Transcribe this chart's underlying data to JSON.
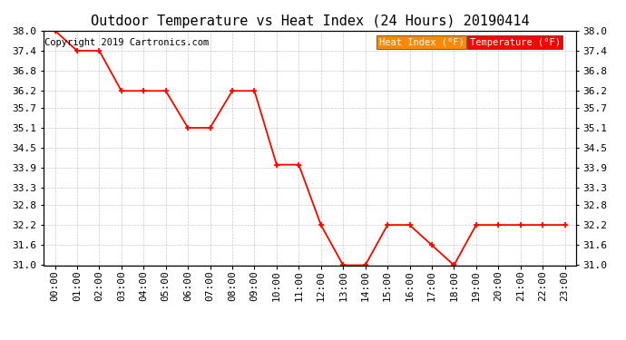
{
  "title": "Outdoor Temperature vs Heat Index (24 Hours) 20190414",
  "copyright": "Copyright 2019 Cartronics.com",
  "x_labels": [
    "00:00",
    "01:00",
    "02:00",
    "03:00",
    "04:00",
    "05:00",
    "06:00",
    "07:00",
    "08:00",
    "09:00",
    "10:00",
    "11:00",
    "12:00",
    "13:00",
    "14:00",
    "15:00",
    "16:00",
    "17:00",
    "18:00",
    "19:00",
    "20:00",
    "21:00",
    "22:00",
    "23:00"
  ],
  "ylim": [
    31.0,
    38.0
  ],
  "yticks": [
    31.0,
    31.6,
    32.2,
    32.8,
    33.3,
    33.9,
    34.5,
    35.1,
    35.7,
    36.2,
    36.8,
    37.4,
    38.0
  ],
  "temperature": [
    38.0,
    37.4,
    37.4,
    36.2,
    36.2,
    36.2,
    35.1,
    35.1,
    36.2,
    36.2,
    34.0,
    34.0,
    32.2,
    31.0,
    31.0,
    32.2,
    32.2,
    31.6,
    31.0,
    32.2,
    32.2,
    32.2,
    32.2,
    32.2
  ],
  "heat_index": [
    38.0,
    37.4,
    37.4,
    36.2,
    36.2,
    36.2,
    35.1,
    35.1,
    36.2,
    36.2,
    34.0,
    34.0,
    32.2,
    31.0,
    31.0,
    32.2,
    32.2,
    31.6,
    31.0,
    32.2,
    32.2,
    32.2,
    32.2,
    32.2
  ],
  "temp_color": "#ff0000",
  "heat_index_color": "#ff8800",
  "legend_heat_index_bg": "#ff8800",
  "legend_temp_bg": "#ff0000",
  "legend_text_color": "#ffffff",
  "background_color": "#ffffff",
  "grid_color": "#bbbbbb",
  "title_fontsize": 11,
  "tick_fontsize": 8,
  "copyright_fontsize": 7.5
}
